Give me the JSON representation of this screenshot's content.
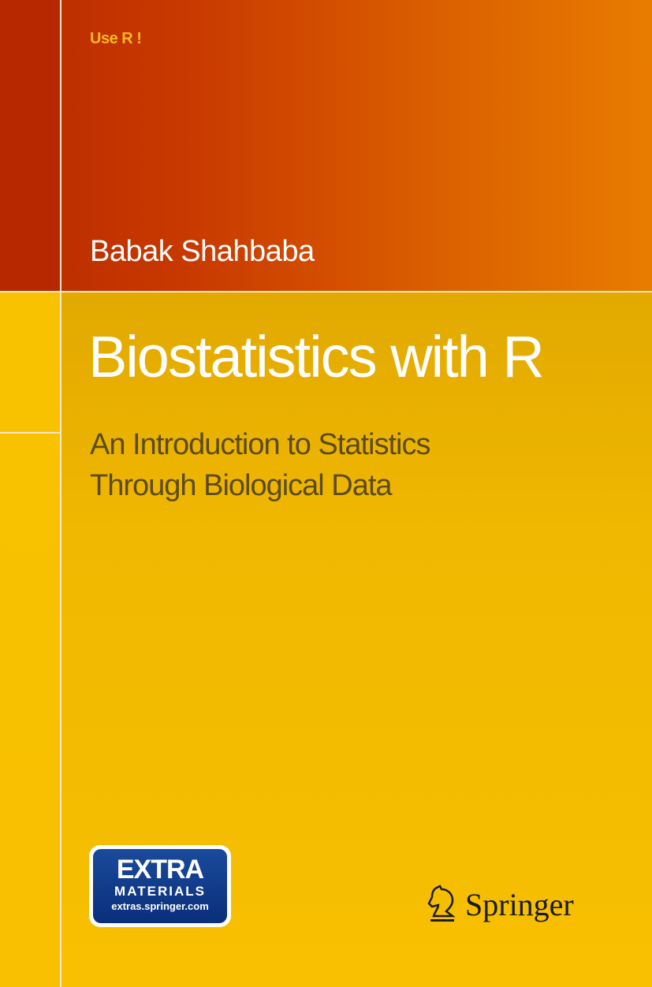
{
  "series": "Use R !",
  "author": "Babak Shahbaba",
  "title": "Biostatistics with R",
  "subtitle": [
    "An Introduction to Statistics",
    "Through Biological Data"
  ],
  "badge": {
    "line1": "EXTRA",
    "line2": "MATERIALS",
    "line3": "extras.springer.com"
  },
  "publisher": {
    "name": "Springer",
    "icon": "springer-horse-icon"
  },
  "colors": {
    "top_band": "#c93a00",
    "bottom_band": "#f8c000",
    "badge": "#0a2f7a"
  }
}
